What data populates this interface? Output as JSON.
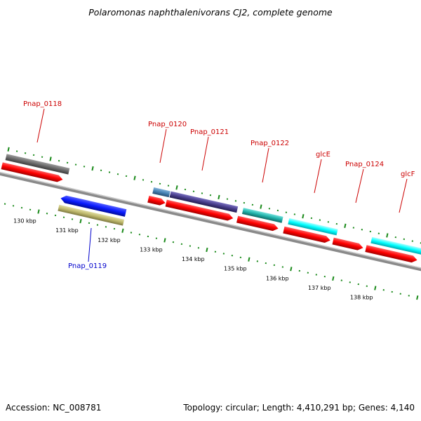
{
  "title": "Polaromonas naphthalenivorans CJ2, complete genome",
  "footer": {
    "accession": "Accession: NC_008781",
    "summary": "Topology: circular; Length: 4,410,291 bp; Genes: 4,140"
  },
  "scale_labels": [
    "130 kbp",
    "131 kbp",
    "132 kbp",
    "133 kbp",
    "134 kbp",
    "135 kbp",
    "136 kbp",
    "137 kbp",
    "138 kbp"
  ],
  "gene_labels": {
    "Pnap_0118": "Pnap_0118",
    "Pnap_0119": "Pnap_0119",
    "Pnap_0120": "Pnap_0120",
    "Pnap_0121": "Pnap_0121",
    "Pnap_0122": "Pnap_0122",
    "glcE": "glcE",
    "Pnap_0124": "Pnap_0124",
    "glcF": "glcF"
  },
  "colors": {
    "forward_label": "#cc0000",
    "reverse_label": "#0000cc",
    "tick": "#1a8a1a",
    "backbone": "#8a8a8a",
    "cds": "#ff0000",
    "gray_gene": "#6b6b6b",
    "blue_gene": "#0b1cff",
    "khaki_gene": "#bdb76b",
    "steel_gene": "#4682b4",
    "slate_gene": "#483d8b",
    "teal_gene": "#20b2aa",
    "cyan_gene": "#00ffff"
  }
}
